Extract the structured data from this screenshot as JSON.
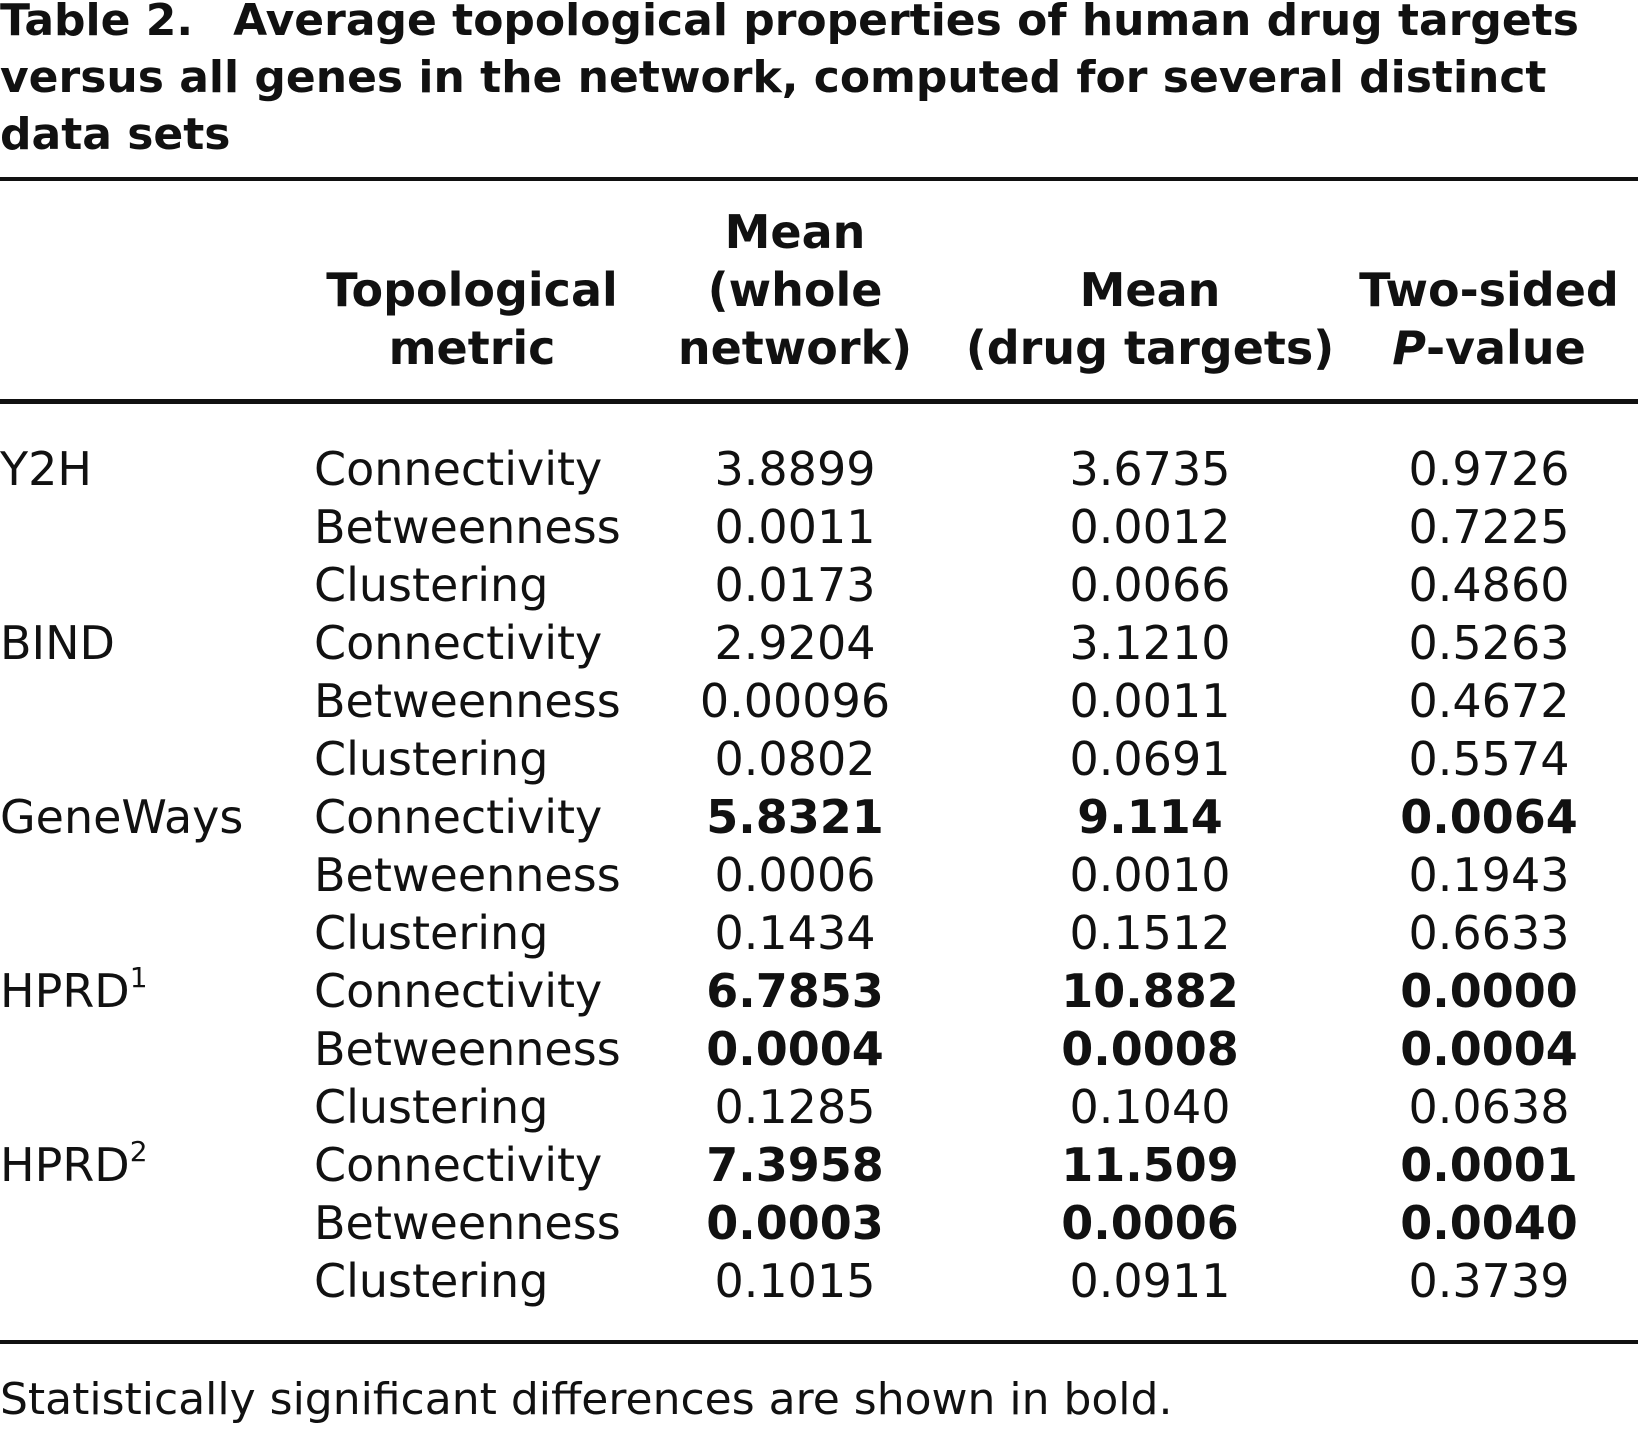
{
  "title": {
    "label": "Table 2.",
    "caption": "Average topological properties of human drug targets versus all genes in the network, computed for several distinct data sets"
  },
  "table": {
    "headers": [
      [
        "Topological",
        "metric"
      ],
      [
        "Mean",
        "(whole",
        "network)"
      ],
      [
        "Mean",
        "(drug targets)"
      ],
      [
        "Two-sided",
        {
          "italic": "P",
          "text": "-value"
        }
      ]
    ],
    "groups": [
      {
        "name": "Y2H",
        "rows": [
          {
            "metric": "Connectivity",
            "cells": [
              "3.8899",
              "3.6735",
              "0.9726"
            ],
            "bold": false
          },
          {
            "metric": "Betweenness",
            "cells": [
              "0.0011",
              "0.0012",
              "0.7225"
            ],
            "bold": false
          },
          {
            "metric": "Clustering",
            "cells": [
              "0.0173",
              "0.0066",
              "0.4860"
            ],
            "bold": false
          }
        ]
      },
      {
        "name": "BIND",
        "rows": [
          {
            "metric": "Connectivity",
            "cells": [
              "2.9204",
              "3.1210",
              "0.5263"
            ],
            "bold": false
          },
          {
            "metric": "Betweenness",
            "cells": [
              "0.00096",
              "0.0011",
              "0.4672"
            ],
            "bold": false
          },
          {
            "metric": "Clustering",
            "cells": [
              "0.0802",
              "0.0691",
              "0.5574"
            ],
            "bold": false
          }
        ]
      },
      {
        "name": "GeneWays",
        "rows": [
          {
            "metric": "Connectivity",
            "cells": [
              "5.8321",
              "9.114",
              "0.0064"
            ],
            "bold": true
          },
          {
            "metric": "Betweenness",
            "cells": [
              "0.0006",
              "0.0010",
              "0.1943"
            ],
            "bold": false
          },
          {
            "metric": "Clustering",
            "cells": [
              "0.1434",
              "0.1512",
              "0.6633"
            ],
            "bold": false
          }
        ]
      },
      {
        "name": "HPRD",
        "sup": "1",
        "rows": [
          {
            "metric": "Connectivity",
            "cells": [
              "6.7853",
              "10.882",
              "0.0000"
            ],
            "bold": true
          },
          {
            "metric": "Betweenness",
            "cells": [
              "0.0004",
              "0.0008",
              "0.0004"
            ],
            "bold": true
          },
          {
            "metric": "Clustering",
            "cells": [
              "0.1285",
              "0.1040",
              "0.0638"
            ],
            "bold": false
          }
        ]
      },
      {
        "name": "HPRD",
        "sup": "2",
        "rows": [
          {
            "metric": "Connectivity",
            "cells": [
              "7.3958",
              "11.509",
              "0.0001"
            ],
            "bold": true
          },
          {
            "metric": "Betweenness",
            "cells": [
              "0.0003",
              "0.0006",
              "0.0040"
            ],
            "bold": true
          },
          {
            "metric": "Clustering",
            "cells": [
              "0.1015",
              "0.0911",
              "0.3739"
            ],
            "bold": false
          }
        ]
      }
    ],
    "footnote": "Statistically significant differences are shown in bold."
  }
}
